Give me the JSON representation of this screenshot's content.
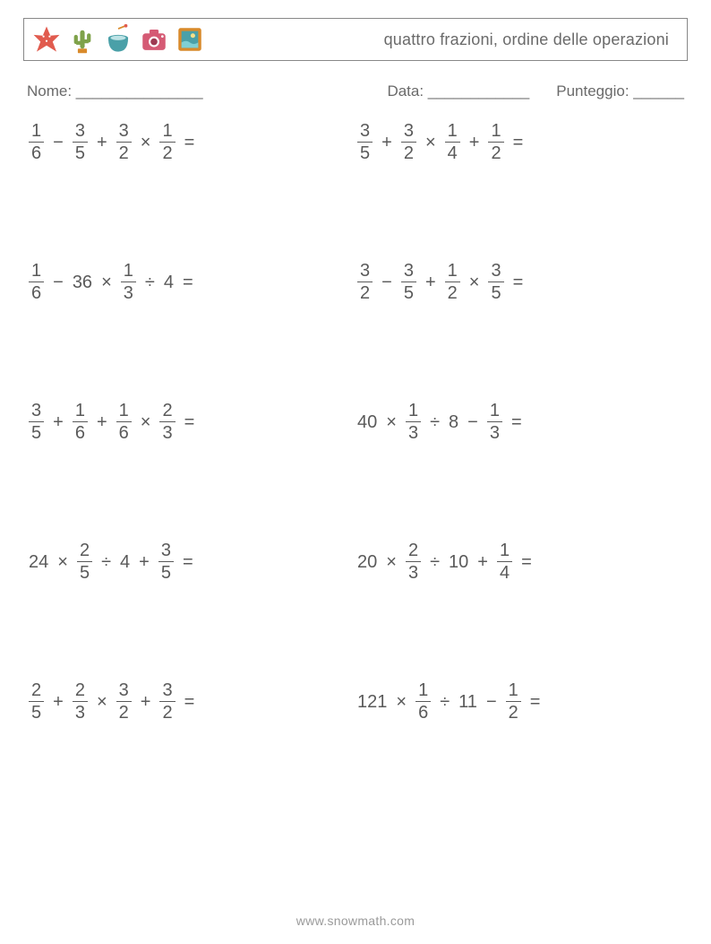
{
  "header": {
    "title": "quattro frazioni, ordine delle operazioni",
    "icon_colors": {
      "starfish": "#e15b4e",
      "cactus_pot": "#d98a2b",
      "cactus": "#7fa24a",
      "drink_cup": "#4aa0a8",
      "drink_straw": "#d98a2b",
      "camera": "#d55a74",
      "frame_outer": "#d98a2b",
      "frame_inner": "#4aa0a8"
    }
  },
  "meta": {
    "name_label": "Nome: _______________",
    "date_label": "Data: ____________",
    "score_label": "Punteggio: ______"
  },
  "footer": "www.snowmath.com",
  "problems": [
    [
      [
        {
          "t": "f",
          "n": "1",
          "d": "6"
        },
        {
          "t": "o",
          "v": "−"
        },
        {
          "t": "f",
          "n": "3",
          "d": "5"
        },
        {
          "t": "o",
          "v": "+"
        },
        {
          "t": "f",
          "n": "3",
          "d": "2"
        },
        {
          "t": "o",
          "v": "×"
        },
        {
          "t": "f",
          "n": "1",
          "d": "2"
        },
        {
          "t": "o",
          "v": "="
        }
      ],
      [
        {
          "t": "f",
          "n": "3",
          "d": "5"
        },
        {
          "t": "o",
          "v": "+"
        },
        {
          "t": "f",
          "n": "3",
          "d": "2"
        },
        {
          "t": "o",
          "v": "×"
        },
        {
          "t": "f",
          "n": "1",
          "d": "4"
        },
        {
          "t": "o",
          "v": "+"
        },
        {
          "t": "f",
          "n": "1",
          "d": "2"
        },
        {
          "t": "o",
          "v": "="
        }
      ]
    ],
    [
      [
        {
          "t": "f",
          "n": "1",
          "d": "6"
        },
        {
          "t": "o",
          "v": "−"
        },
        {
          "t": "w",
          "v": "36"
        },
        {
          "t": "o",
          "v": "×"
        },
        {
          "t": "f",
          "n": "1",
          "d": "3"
        },
        {
          "t": "o",
          "v": "÷"
        },
        {
          "t": "w",
          "v": "4"
        },
        {
          "t": "o",
          "v": "="
        }
      ],
      [
        {
          "t": "f",
          "n": "3",
          "d": "2"
        },
        {
          "t": "o",
          "v": "−"
        },
        {
          "t": "f",
          "n": "3",
          "d": "5"
        },
        {
          "t": "o",
          "v": "+"
        },
        {
          "t": "f",
          "n": "1",
          "d": "2"
        },
        {
          "t": "o",
          "v": "×"
        },
        {
          "t": "f",
          "n": "3",
          "d": "5"
        },
        {
          "t": "o",
          "v": "="
        }
      ]
    ],
    [
      [
        {
          "t": "f",
          "n": "3",
          "d": "5"
        },
        {
          "t": "o",
          "v": "+"
        },
        {
          "t": "f",
          "n": "1",
          "d": "6"
        },
        {
          "t": "o",
          "v": "+"
        },
        {
          "t": "f",
          "n": "1",
          "d": "6"
        },
        {
          "t": "o",
          "v": "×"
        },
        {
          "t": "f",
          "n": "2",
          "d": "3"
        },
        {
          "t": "o",
          "v": "="
        }
      ],
      [
        {
          "t": "w",
          "v": "40"
        },
        {
          "t": "o",
          "v": "×"
        },
        {
          "t": "f",
          "n": "1",
          "d": "3"
        },
        {
          "t": "o",
          "v": "÷"
        },
        {
          "t": "w",
          "v": "8"
        },
        {
          "t": "o",
          "v": "−"
        },
        {
          "t": "f",
          "n": "1",
          "d": "3"
        },
        {
          "t": "o",
          "v": "="
        }
      ]
    ],
    [
      [
        {
          "t": "w",
          "v": "24"
        },
        {
          "t": "o",
          "v": "×"
        },
        {
          "t": "f",
          "n": "2",
          "d": "5"
        },
        {
          "t": "o",
          "v": "÷"
        },
        {
          "t": "w",
          "v": "4"
        },
        {
          "t": "o",
          "v": "+"
        },
        {
          "t": "f",
          "n": "3",
          "d": "5"
        },
        {
          "t": "o",
          "v": "="
        }
      ],
      [
        {
          "t": "w",
          "v": "20"
        },
        {
          "t": "o",
          "v": "×"
        },
        {
          "t": "f",
          "n": "2",
          "d": "3"
        },
        {
          "t": "o",
          "v": "÷"
        },
        {
          "t": "w",
          "v": "10"
        },
        {
          "t": "o",
          "v": "+"
        },
        {
          "t": "f",
          "n": "1",
          "d": "4"
        },
        {
          "t": "o",
          "v": "="
        }
      ]
    ],
    [
      [
        {
          "t": "f",
          "n": "2",
          "d": "5"
        },
        {
          "t": "o",
          "v": "+"
        },
        {
          "t": "f",
          "n": "2",
          "d": "3"
        },
        {
          "t": "o",
          "v": "×"
        },
        {
          "t": "f",
          "n": "3",
          "d": "2"
        },
        {
          "t": "o",
          "v": "+"
        },
        {
          "t": "f",
          "n": "3",
          "d": "2"
        },
        {
          "t": "o",
          "v": "="
        }
      ],
      [
        {
          "t": "w",
          "v": "121"
        },
        {
          "t": "o",
          "v": "×"
        },
        {
          "t": "f",
          "n": "1",
          "d": "6"
        },
        {
          "t": "o",
          "v": "÷"
        },
        {
          "t": "w",
          "v": "11"
        },
        {
          "t": "o",
          "v": "−"
        },
        {
          "t": "f",
          "n": "1",
          "d": "2"
        },
        {
          "t": "o",
          "v": "="
        }
      ]
    ]
  ]
}
